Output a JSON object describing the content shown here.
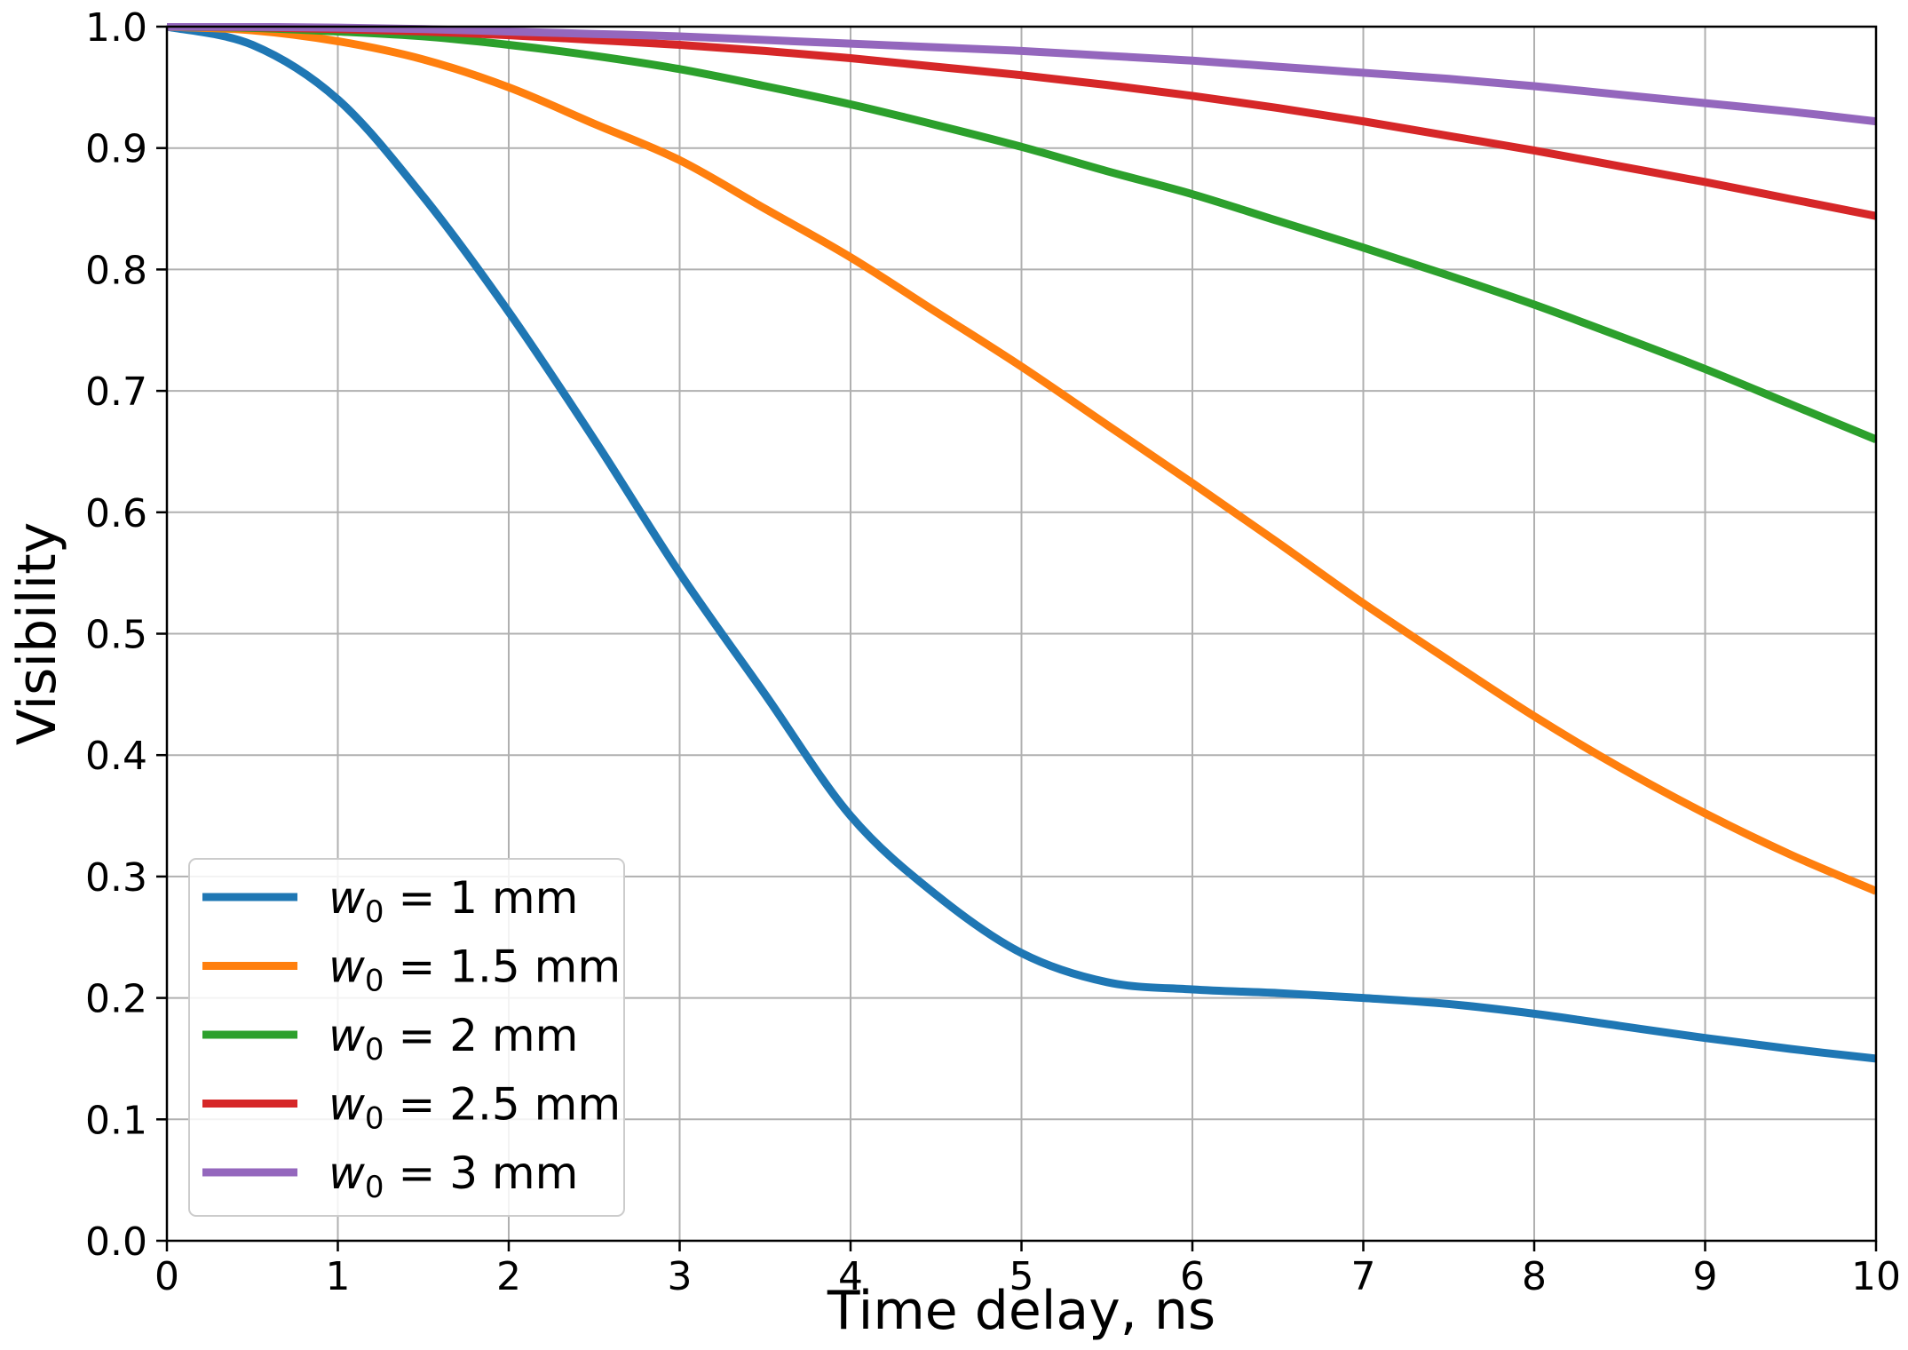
{
  "chart_data": {
    "type": "line",
    "xlabel": "Time delay, ns",
    "ylabel": "Visibility",
    "xlim": [
      0,
      10
    ],
    "ylim": [
      0,
      1.0
    ],
    "xticks": [
      "0",
      "1",
      "2",
      "3",
      "4",
      "5",
      "6",
      "7",
      "8",
      "9",
      "10"
    ],
    "yticks": [
      "0.0",
      "0.1",
      "0.2",
      "0.3",
      "0.4",
      "0.5",
      "0.6",
      "0.7",
      "0.8",
      "0.9",
      "1.0"
    ],
    "grid": true,
    "legend_position": "lower-left",
    "x": [
      0,
      0.5,
      1,
      1.5,
      2,
      2.5,
      3,
      3.5,
      4,
      4.5,
      5,
      5.5,
      6,
      6.5,
      7,
      7.5,
      8,
      8.5,
      9,
      9.5,
      10
    ],
    "series": [
      {
        "name": "w0 = 1 mm",
        "legend_symbol": "w",
        "legend_subscript": "0",
        "legend_value": " = 1 mm",
        "color": "#1f77b4",
        "values": [
          1.0,
          0.985,
          0.94,
          0.86,
          0.765,
          0.66,
          0.55,
          0.45,
          0.35,
          0.285,
          0.237,
          0.213,
          0.207,
          0.204,
          0.2,
          0.195,
          0.187,
          0.177,
          0.167,
          0.158,
          0.15
        ]
      },
      {
        "name": "w0 = 1.5 mm",
        "legend_symbol": "w",
        "legend_subscript": "0",
        "legend_value": " = 1.5 mm",
        "color": "#ff7f0e",
        "values": [
          1.0,
          0.997,
          0.988,
          0.973,
          0.95,
          0.92,
          0.89,
          0.85,
          0.81,
          0.765,
          0.72,
          0.672,
          0.624,
          0.575,
          0.525,
          0.478,
          0.432,
          0.39,
          0.352,
          0.318,
          0.288
        ]
      },
      {
        "name": "w0 = 2 mm",
        "legend_symbol": "w",
        "legend_subscript": "0",
        "legend_value": " = 2 mm",
        "color": "#2ca02c",
        "values": [
          1.0,
          0.999,
          0.996,
          0.992,
          0.985,
          0.976,
          0.965,
          0.951,
          0.936,
          0.919,
          0.901,
          0.881,
          0.862,
          0.84,
          0.818,
          0.795,
          0.771,
          0.745,
          0.718,
          0.689,
          0.66
        ]
      },
      {
        "name": "w0 = 2.5 mm",
        "legend_symbol": "w",
        "legend_subscript": "0",
        "legend_value": " = 2.5 mm",
        "color": "#d62728",
        "values": [
          1.0,
          0.9995,
          0.998,
          0.996,
          0.993,
          0.989,
          0.985,
          0.98,
          0.974,
          0.967,
          0.96,
          0.952,
          0.943,
          0.933,
          0.922,
          0.91,
          0.898,
          0.885,
          0.872,
          0.858,
          0.844
        ]
      },
      {
        "name": "w0 = 3 mm",
        "legend_symbol": "w",
        "legend_subscript": "0",
        "legend_value": " = 3 mm",
        "color": "#9467bd",
        "values": [
          1.0,
          0.9998,
          0.9992,
          0.998,
          0.996,
          0.994,
          0.992,
          0.989,
          0.986,
          0.983,
          0.98,
          0.976,
          0.972,
          0.967,
          0.962,
          0.957,
          0.951,
          0.944,
          0.937,
          0.93,
          0.922
        ]
      }
    ]
  }
}
